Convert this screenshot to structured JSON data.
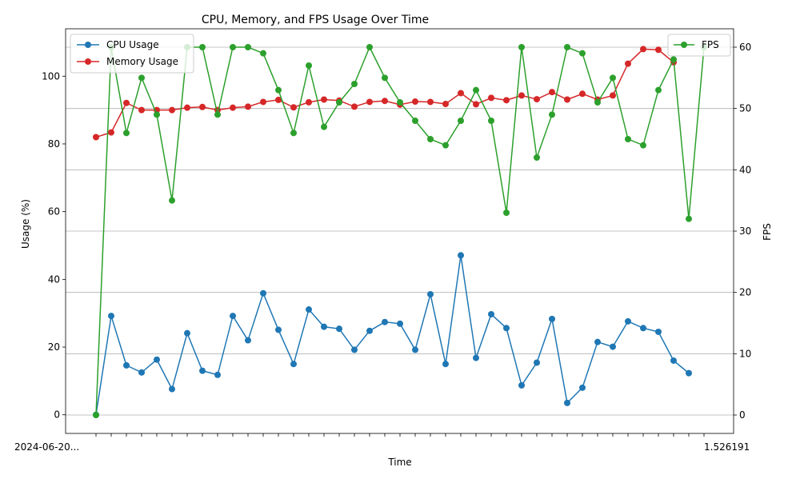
{
  "chart_data": {
    "type": "line",
    "title": "CPU, Memory, and FPS Usage Over Time",
    "xlabel": "Time",
    "ylabel_left": "Usage (%)",
    "ylabel_right": "FPS",
    "ylim_left": [
      -5.5,
      114
    ],
    "ylim_right": [
      -3,
      63
    ],
    "yticks_left": [
      "0",
      "20",
      "40",
      "60",
      "80",
      "100"
    ],
    "yticks_right": [
      "0",
      "10",
      "20",
      "30",
      "40",
      "50",
      "60"
    ],
    "grid": "horizontal, right axis",
    "legend_left": "upper-left",
    "legend_right": "upper-right",
    "x_tick_text_visible": "2024-06-20...",
    "x_tick_text_end": "1.526191",
    "point_count": 41,
    "series": [
      {
        "name": "CPU Usage",
        "axis": "left",
        "color": "#1f77b4",
        "values": [
          0,
          29.2,
          14.6,
          12.5,
          16.3,
          7.6,
          24.1,
          13,
          11.8,
          29.2,
          22,
          35.9,
          25.1,
          15,
          31.1,
          26,
          25.4,
          19.2,
          24.8,
          27.4,
          26.9,
          19.2,
          35.6,
          15,
          47.1,
          16.8,
          29.7,
          25.6,
          8.7,
          15.4,
          28.3,
          3.5,
          8,
          21.5,
          20.1,
          27.6,
          25.6,
          24.5,
          16,
          12.3,
          null
        ]
      },
      {
        "name": "Memory Usage",
        "axis": "left",
        "color": "#d62728",
        "values": [
          82,
          83.4,
          92.1,
          90,
          90,
          90,
          90.7,
          90.9,
          90,
          90.7,
          91,
          92.4,
          93,
          90.8,
          92.3,
          93.1,
          92.8,
          91,
          92.4,
          92.7,
          91.6,
          92.5,
          92.4,
          91.8,
          95,
          91.7,
          93.6,
          92.9,
          94.3,
          93.2,
          95.3,
          93.1,
          94.8,
          93.1,
          94.3,
          103.7,
          108,
          107.8,
          104.1,
          null,
          null
        ]
      },
      {
        "name": "FPS",
        "axis": "right",
        "color": "#2ca02c",
        "values": [
          0,
          60,
          46,
          55,
          49,
          35,
          60,
          60,
          49,
          60,
          60,
          59,
          53,
          46,
          57,
          47,
          51,
          54,
          60,
          55,
          51,
          48,
          45,
          44,
          48,
          53,
          48,
          33,
          60,
          42,
          49,
          60,
          59,
          51,
          55,
          45,
          44,
          53,
          58,
          32,
          60
        ]
      }
    ]
  }
}
